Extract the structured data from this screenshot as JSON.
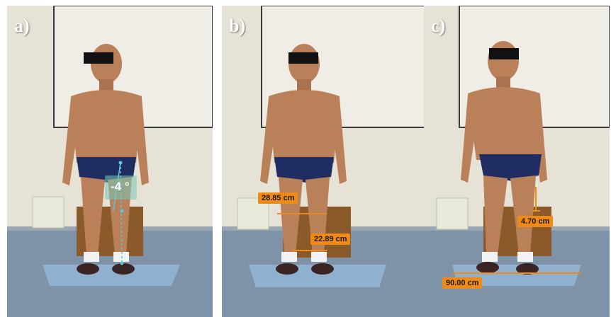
{
  "panels": [
    {
      "letter": "a)",
      "measurement": "-4 °"
    },
    {
      "letter": "b)",
      "measurement_upper": "28.85 cm",
      "measurement_lower": "22.89 cm"
    },
    {
      "letter": "c)",
      "measurement_upper": "4.70 cm",
      "measurement_lower": "90.00 cm"
    }
  ],
  "colors": {
    "wall": "#e6e2d6",
    "floor": "#7f93a8",
    "mat": "#8fb1cf",
    "box": "#8a5a2a",
    "skin": "#b9805a",
    "briefs": "#1f2d63",
    "overlay": "#f08a16",
    "angle_overlay": "#5cc8d8"
  }
}
